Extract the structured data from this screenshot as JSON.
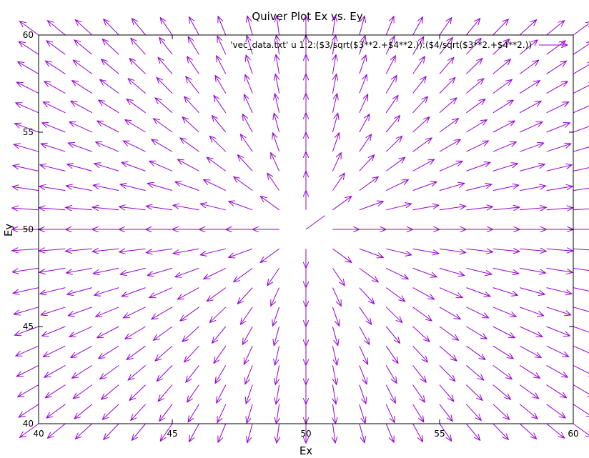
{
  "chart_data": {
    "type": "quiver",
    "title": "Quiver Plot Ex vs. Ey",
    "xlabel": "Ex",
    "ylabel": "Ey",
    "xlim": [
      40,
      60
    ],
    "ylim": [
      40,
      60
    ],
    "xticks": [
      "40",
      "45",
      "50",
      "55",
      "60"
    ],
    "yticks": [
      "40",
      "45",
      "50",
      "55",
      "60"
    ],
    "grid": false,
    "legend_position": "top-right",
    "series": [
      {
        "name": "'vec_data.txt' u 1:2:($3/sqrt($3**2.+$4**2.)):($4/sqrt($3**2.+$4**2.))",
        "color": "#9400d3",
        "field": "radial unit vectors pointing away from (50, 50)",
        "center": [
          50,
          50
        ],
        "grid_x": [
          40,
          60
        ],
        "grid_y": [
          40,
          60
        ],
        "count_x": 20,
        "count_y": 20,
        "vector_length": 1
      }
    ]
  }
}
